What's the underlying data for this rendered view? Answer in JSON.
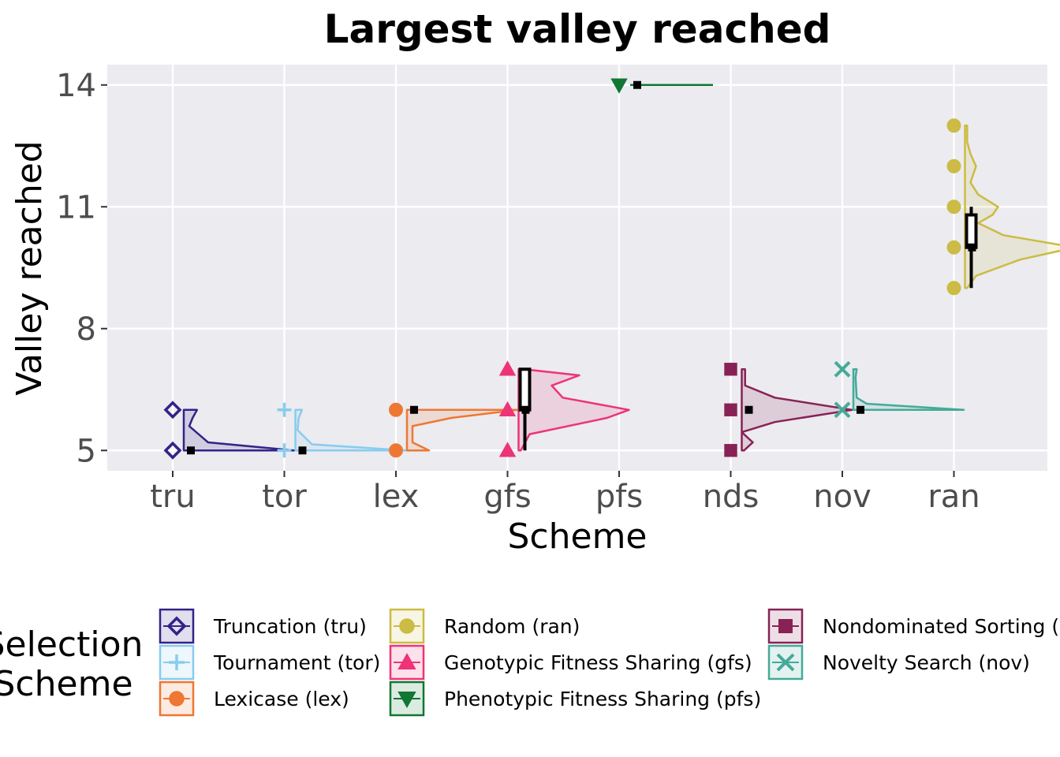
{
  "chart_data": {
    "type": "raincloud",
    "title": "Largest valley reached",
    "xlabel": "Scheme",
    "ylabel": "Valley reached",
    "ylim": [
      4.5,
      14.5
    ],
    "yticks": [
      5,
      8,
      11,
      14
    ],
    "categories": [
      "tru",
      "tor",
      "lex",
      "gfs",
      "pfs",
      "nds",
      "nov",
      "ran"
    ],
    "grid": true,
    "legend_title": [
      "Selection",
      "Scheme"
    ],
    "legend_position": "bottom",
    "series": [
      {
        "code": "tru",
        "name": "Truncation (tru)",
        "color": "#332288",
        "shape": "diamond",
        "points": [
          5,
          6
        ],
        "mean": 5.0,
        "box": {
          "min": 5,
          "q1": 5,
          "median": 5,
          "q3": 5,
          "max": 5
        },
        "density": [
          [
            5,
            1.0
          ],
          [
            5.2,
            0.22
          ],
          [
            5.6,
            0.05
          ],
          [
            5.8,
            0.08
          ],
          [
            6,
            0.12
          ]
        ]
      },
      {
        "code": "tor",
        "name": "Tournament (tor)",
        "color": "#88CCEE",
        "shape": "plus",
        "points": [
          5,
          6
        ],
        "mean": 5.0,
        "box": {
          "min": 5,
          "q1": 5,
          "median": 5,
          "q3": 5,
          "max": 5
        },
        "density": [
          [
            5,
            1.0
          ],
          [
            5.15,
            0.15
          ],
          [
            5.5,
            0.02
          ],
          [
            5.8,
            0.03
          ],
          [
            6,
            0.06
          ]
        ]
      },
      {
        "code": "lex",
        "name": "Lexicase (lex)",
        "color": "#EE7733",
        "shape": "circle",
        "points": [
          5,
          6
        ],
        "mean": 6.0,
        "box": {
          "min": 6,
          "q1": 6,
          "median": 6,
          "q3": 6,
          "max": 6
        },
        "density": [
          [
            5,
            0.2
          ],
          [
            5.2,
            0.05
          ],
          [
            5.6,
            0.05
          ],
          [
            5.8,
            0.4
          ],
          [
            6,
            1.0
          ]
        ]
      },
      {
        "code": "gfs",
        "name": "Genotypic Fitness Sharing (gfs)",
        "color": "#EE3377",
        "shape": "triangle",
        "points": [
          5,
          6,
          7
        ],
        "mean": 6.0,
        "box": {
          "min": 5,
          "q1": 6,
          "median": 6,
          "q3": 7,
          "max": 7
        },
        "density": [
          [
            5,
            0.02
          ],
          [
            5.4,
            0.1
          ],
          [
            5.8,
            0.8
          ],
          [
            6,
            1.0
          ],
          [
            6.3,
            0.4
          ],
          [
            6.6,
            0.3
          ],
          [
            6.85,
            0.55
          ],
          [
            7,
            0.05
          ]
        ]
      },
      {
        "code": "pfs",
        "name": "Phenotypic Fitness Sharing (pfs)",
        "color": "#117733",
        "shape": "triangle-down",
        "points": [
          14
        ],
        "mean": 14.0,
        "box": {
          "min": 14,
          "q1": 14,
          "median": 14,
          "q3": 14,
          "max": 14
        },
        "density": [
          [
            14,
            1.0
          ]
        ]
      },
      {
        "code": "nds",
        "name": "Nondominated Sorting (nds)",
        "color": "#882255",
        "shape": "square",
        "points": [
          5,
          6,
          7
        ],
        "mean": 6.0,
        "box": {
          "min": 6,
          "q1": 6,
          "median": 6,
          "q3": 6,
          "max": 6
        },
        "density": [
          [
            5,
            0.02
          ],
          [
            5.2,
            0.1
          ],
          [
            5.45,
            0.0
          ],
          [
            5.7,
            0.3
          ],
          [
            6,
            1.0
          ],
          [
            6.3,
            0.3
          ],
          [
            6.6,
            0.03
          ],
          [
            7,
            0.03
          ]
        ]
      },
      {
        "code": "nov",
        "name": "Novelty Search (nov)",
        "color": "#44AA99",
        "shape": "cross",
        "points": [
          6,
          7
        ],
        "mean": 6.0,
        "box": {
          "min": 6,
          "q1": 6,
          "median": 6,
          "q3": 6,
          "max": 6
        },
        "density": [
          [
            6,
            1.0
          ],
          [
            6.15,
            0.12
          ],
          [
            6.3,
            0.03
          ],
          [
            6.8,
            0.02
          ],
          [
            7,
            0.03
          ]
        ]
      },
      {
        "code": "ran",
        "name": "Random (ran)",
        "color": "#CCBB44",
        "shape": "circle",
        "points": [
          9,
          10,
          11,
          12,
          13
        ],
        "mean": 10.0,
        "box": {
          "min": 9,
          "q1": 10,
          "median": 10.4,
          "q3": 10.8,
          "max": 11
        },
        "density": [
          [
            9,
            0.02
          ],
          [
            9.3,
            0.1
          ],
          [
            9.7,
            0.5
          ],
          [
            10,
            1.0
          ],
          [
            10.3,
            0.35
          ],
          [
            10.6,
            0.12
          ],
          [
            10.8,
            0.25
          ],
          [
            11,
            0.3
          ],
          [
            11.3,
            0.12
          ],
          [
            11.6,
            0.05
          ],
          [
            12,
            0.1
          ],
          [
            12.3,
            0.05
          ],
          [
            12.6,
            0.02
          ],
          [
            13,
            0.02
          ]
        ]
      }
    ],
    "legend_order": [
      "tru",
      "tor",
      "lex",
      "ran",
      "gfs",
      "pfs",
      "nds",
      "nov"
    ]
  }
}
